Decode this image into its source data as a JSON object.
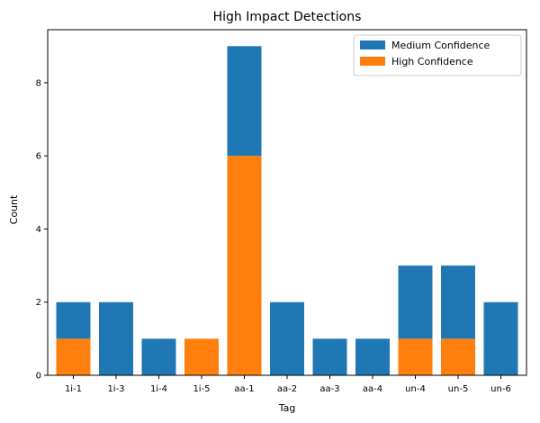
{
  "chart_data": {
    "type": "bar",
    "stacked": true,
    "title": "High Impact Detections",
    "xlabel": "Tag",
    "ylabel": "Count",
    "categories": [
      "1i-1",
      "1i-3",
      "1i-4",
      "1i-5",
      "aa-1",
      "aa-2",
      "aa-3",
      "aa-4",
      "un-4",
      "un-5",
      "un-6"
    ],
    "series": [
      {
        "name": "High Confidence",
        "color": "#ff7f0e",
        "values": [
          1,
          0,
          0,
          1,
          6,
          0,
          0,
          0,
          1,
          1,
          0
        ]
      },
      {
        "name": "Medium Confidence",
        "color": "#1f77b4",
        "values": [
          1,
          2,
          1,
          0,
          3,
          2,
          1,
          1,
          2,
          2,
          2
        ]
      }
    ],
    "legend_order": [
      "Medium Confidence",
      "High Confidence"
    ],
    "legend_position": "top-right",
    "ylim": [
      0,
      9.45
    ],
    "yticks": [
      0,
      2,
      4,
      6,
      8
    ],
    "grid": false
  }
}
